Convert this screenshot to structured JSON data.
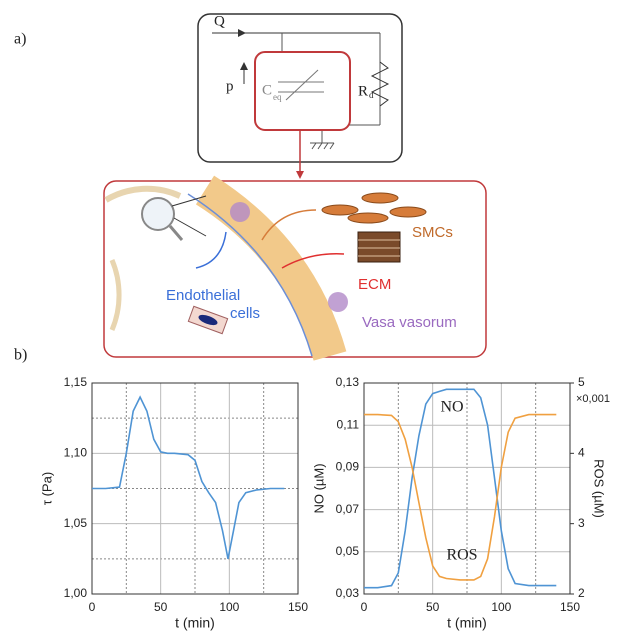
{
  "panels": {
    "a": "a)",
    "b": "b)"
  },
  "diagram": {
    "circuit": {
      "flow": "Q",
      "pressure": "p",
      "capacitor": "C",
      "capacitor_sub": "eq",
      "resistor": "R",
      "resistor_sub": "d"
    },
    "biology": {
      "smc": "SMCs",
      "ecm": "ECM",
      "endothelial_1": "Endothelial",
      "endothelial_2": "cells",
      "vasa": "Vasa vasorum"
    }
  },
  "chart_data": [
    {
      "type": "line",
      "xlabel": "t (min)",
      "ylabel": "τ (Pa)",
      "x": [
        0,
        10,
        20,
        25,
        30,
        35,
        40,
        45,
        50,
        55,
        60,
        70,
        75,
        80,
        85,
        90,
        95,
        99,
        103,
        107,
        112,
        120,
        130,
        140
      ],
      "series": [
        {
          "color": "#4f94d4",
          "values": [
            1.075,
            1.075,
            1.076,
            1.1,
            1.13,
            1.14,
            1.13,
            1.11,
            1.101,
            1.1,
            1.1,
            1.099,
            1.095,
            1.08,
            1.072,
            1.065,
            1.045,
            1.025,
            1.045,
            1.065,
            1.072,
            1.074,
            1.075,
            1.075
          ]
        }
      ],
      "xlim": [
        0,
        150
      ],
      "xticks": [
        0,
        50,
        100,
        150
      ],
      "minor_xticks": [
        25,
        75,
        125
      ],
      "ylim": [
        1.0,
        1.15
      ],
      "yticks": [
        {
          "value": 1.0,
          "label": "1,00"
        },
        {
          "value": 1.05,
          "label": "1,05"
        },
        {
          "value": 1.1,
          "label": "1,10"
        },
        {
          "value": 1.15,
          "label": "1,15"
        }
      ],
      "minor_yticks": [
        1.025,
        1.075,
        1.125
      ],
      "grid": true
    },
    {
      "type": "line",
      "xlabel": "t (min)",
      "ylabel": "NO (µM)",
      "y2label": "ROS (µM)",
      "y2_multiplier": "×0,001",
      "x": [
        0,
        10,
        20,
        25,
        30,
        35,
        40,
        45,
        50,
        55,
        60,
        70,
        80,
        85,
        90,
        95,
        100,
        105,
        110,
        120,
        130,
        140
      ],
      "series": [
        {
          "name": "NO",
          "color": "#4f94d4",
          "values": [
            0.033,
            0.033,
            0.034,
            0.04,
            0.06,
            0.085,
            0.105,
            0.12,
            0.125,
            0.126,
            0.127,
            0.127,
            0.127,
            0.123,
            0.11,
            0.085,
            0.06,
            0.042,
            0.035,
            0.034,
            0.034,
            0.034
          ]
        },
        {
          "name": "ROS",
          "color": "#f0a040",
          "axis": "y2",
          "values": [
            4.55,
            4.55,
            4.54,
            4.45,
            4.2,
            3.8,
            3.3,
            2.8,
            2.4,
            2.25,
            2.22,
            2.2,
            2.2,
            2.25,
            2.5,
            3.1,
            3.8,
            4.3,
            4.5,
            4.55,
            4.55,
            4.55
          ]
        }
      ],
      "xlim": [
        0,
        150
      ],
      "xticks": [
        0,
        50,
        100,
        150
      ],
      "minor_xticks": [
        25,
        75,
        125
      ],
      "ylim": [
        0.03,
        0.13
      ],
      "yticks": [
        {
          "value": 0.03,
          "label": "0,03"
        },
        {
          "value": 0.05,
          "label": "0,05"
        },
        {
          "value": 0.07,
          "label": "0,07"
        },
        {
          "value": 0.09,
          "label": "0,09"
        },
        {
          "value": 0.11,
          "label": "0,11"
        },
        {
          "value": 0.13,
          "label": "0,13"
        }
      ],
      "y2lim": [
        2,
        5
      ],
      "y2ticks": [
        2,
        3,
        4,
        5
      ],
      "grid": true
    }
  ]
}
